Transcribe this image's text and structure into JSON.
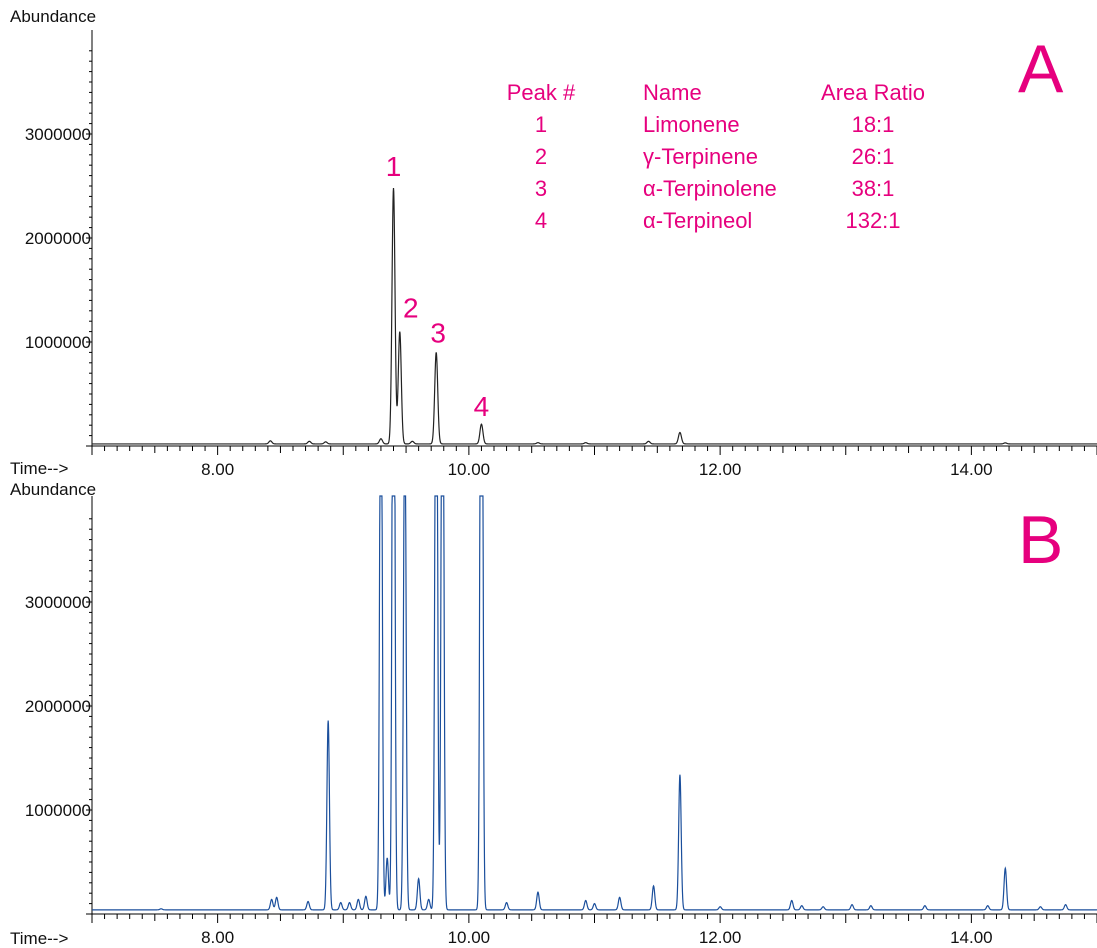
{
  "colors": {
    "accent": "#e6007e",
    "trace_a": "#222222",
    "trace_b": "#1b4f9c",
    "axis": "#000000"
  },
  "chart_data": [
    {
      "type": "line",
      "panel_label": "A",
      "ylabel": "Abundance",
      "xlabel": "Time-->",
      "xlim": [
        7.0,
        15.0
      ],
      "ylim": [
        0,
        3800000
      ],
      "x_ticks": [
        "8.00",
        "10.00",
        "12.00",
        "14.00"
      ],
      "y_ticks": [
        "1000000",
        "2000000",
        "3000000"
      ],
      "baseline": 20000,
      "peaks": [
        {
          "x": 8.42,
          "y": 30000
        },
        {
          "x": 8.73,
          "y": 25000
        },
        {
          "x": 8.86,
          "y": 20000
        },
        {
          "x": 9.3,
          "y": 50000
        },
        {
          "x": 9.4,
          "y": 2460000,
          "label": "1"
        },
        {
          "x": 9.45,
          "y": 1080000,
          "label": "2"
        },
        {
          "x": 9.55,
          "y": 25000
        },
        {
          "x": 9.74,
          "y": 880000,
          "label": "3"
        },
        {
          "x": 10.1,
          "y": 190000,
          "label": "4"
        },
        {
          "x": 10.55,
          "y": 12000
        },
        {
          "x": 10.93,
          "y": 12000
        },
        {
          "x": 11.43,
          "y": 25000
        },
        {
          "x": 11.68,
          "y": 110000
        },
        {
          "x": 14.27,
          "y": 10000
        }
      ],
      "table": {
        "headers": [
          "Peak #",
          "Name",
          "Area Ratio"
        ],
        "rows": [
          [
            "1",
            "Limonene",
            "18:1"
          ],
          [
            "2",
            "γ-Terpinene",
            "26:1"
          ],
          [
            "3",
            "α-Terpinolene",
            "38:1"
          ],
          [
            "4",
            "α-Terpineol",
            "132:1"
          ]
        ]
      }
    },
    {
      "type": "line",
      "panel_label": "B",
      "ylabel": "Abundance",
      "xlabel": "Time-->",
      "xlim": [
        7.0,
        15.0
      ],
      "ylim": [
        0,
        3800000
      ],
      "x_ticks": [
        "8.00",
        "10.00",
        "12.00",
        "14.00"
      ],
      "y_ticks": [
        "1000000",
        "2000000",
        "3000000"
      ],
      "baseline": 40000,
      "peaks": [
        {
          "x": 7.55,
          "y": 10000
        },
        {
          "x": 8.43,
          "y": 100000
        },
        {
          "x": 8.47,
          "y": 120000
        },
        {
          "x": 8.72,
          "y": 80000
        },
        {
          "x": 8.88,
          "y": 1820000
        },
        {
          "x": 8.98,
          "y": 70000
        },
        {
          "x": 9.05,
          "y": 70000
        },
        {
          "x": 9.12,
          "y": 100000
        },
        {
          "x": 9.18,
          "y": 130000
        },
        {
          "x": 9.3,
          "y": 6000000
        },
        {
          "x": 9.35,
          "y": 500000
        },
        {
          "x": 9.4,
          "y": 8000000
        },
        {
          "x": 9.49,
          "y": 5000000
        },
        {
          "x": 9.6,
          "y": 300000
        },
        {
          "x": 9.68,
          "y": 100000
        },
        {
          "x": 9.74,
          "y": 7000000
        },
        {
          "x": 9.79,
          "y": 7000000
        },
        {
          "x": 10.1,
          "y": 9000000
        },
        {
          "x": 10.3,
          "y": 70000
        },
        {
          "x": 10.55,
          "y": 170000
        },
        {
          "x": 10.93,
          "y": 90000
        },
        {
          "x": 11.0,
          "y": 60000
        },
        {
          "x": 11.2,
          "y": 120000
        },
        {
          "x": 11.47,
          "y": 230000
        },
        {
          "x": 11.68,
          "y": 1300000
        },
        {
          "x": 12.0,
          "y": 30000
        },
        {
          "x": 12.57,
          "y": 90000
        },
        {
          "x": 12.65,
          "y": 40000
        },
        {
          "x": 12.82,
          "y": 30000
        },
        {
          "x": 13.05,
          "y": 50000
        },
        {
          "x": 13.2,
          "y": 40000
        },
        {
          "x": 13.63,
          "y": 40000
        },
        {
          "x": 14.13,
          "y": 40000
        },
        {
          "x": 14.27,
          "y": 400000
        },
        {
          "x": 14.55,
          "y": 30000
        },
        {
          "x": 14.75,
          "y": 50000
        }
      ]
    }
  ]
}
